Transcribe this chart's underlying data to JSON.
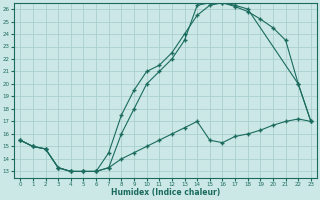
{
  "xlabel": "Humidex (Indice chaleur)",
  "xlim": [
    -0.5,
    23.5
  ],
  "ylim": [
    12.5,
    26.5
  ],
  "xticks": [
    0,
    1,
    2,
    3,
    4,
    5,
    6,
    7,
    8,
    9,
    10,
    11,
    12,
    13,
    14,
    15,
    16,
    17,
    18,
    19,
    20,
    21,
    22,
    23
  ],
  "yticks": [
    13,
    14,
    15,
    16,
    17,
    18,
    19,
    20,
    21,
    22,
    23,
    24,
    25,
    26
  ],
  "bg_color": "#cce8e6",
  "grid_color": "#aacfcd",
  "line_color": "#1a6b5e",
  "line1_x": [
    0,
    1,
    2,
    3,
    4,
    5,
    6,
    7,
    8,
    9,
    10,
    11,
    12,
    13,
    14,
    15,
    16,
    17,
    18,
    22,
    23
  ],
  "line1_y": [
    15.5,
    15.0,
    14.8,
    13.3,
    13.0,
    13.0,
    13.0,
    13.3,
    16.0,
    18.0,
    20.0,
    21.0,
    22.0,
    23.5,
    26.3,
    26.5,
    26.5,
    26.3,
    26.0,
    20.0,
    17.0
  ],
  "line2_x": [
    0,
    1,
    2,
    3,
    4,
    5,
    6,
    7,
    8,
    9,
    10,
    11,
    12,
    13,
    14,
    15,
    16,
    17,
    18,
    19,
    20,
    21,
    22,
    23
  ],
  "line2_y": [
    15.5,
    15.0,
    14.8,
    13.3,
    13.0,
    13.0,
    13.0,
    14.5,
    17.5,
    19.5,
    21.0,
    21.5,
    22.5,
    24.0,
    25.5,
    26.3,
    26.5,
    26.2,
    25.8,
    25.2,
    24.5,
    23.5,
    20.0,
    17.0
  ],
  "line3_x": [
    0,
    1,
    2,
    3,
    4,
    5,
    6,
    7,
    8,
    9,
    10,
    11,
    12,
    13,
    14,
    15,
    16,
    17,
    18,
    19,
    20,
    21,
    22,
    23
  ],
  "line3_y": [
    15.5,
    15.0,
    14.8,
    13.3,
    13.0,
    13.0,
    13.0,
    13.3,
    14.0,
    14.5,
    15.0,
    15.5,
    16.0,
    16.5,
    17.0,
    15.5,
    15.3,
    15.8,
    16.0,
    16.3,
    16.7,
    17.0,
    17.2,
    17.0
  ]
}
